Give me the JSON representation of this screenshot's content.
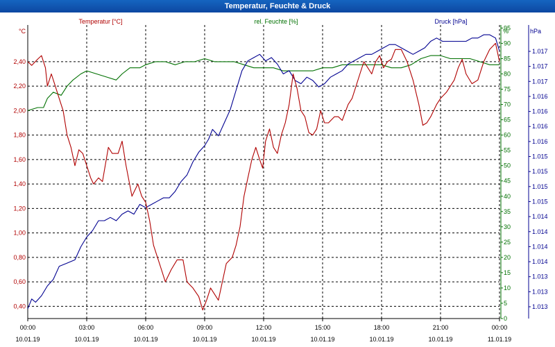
{
  "window_title": "Temperatur, Feuchte & Druck",
  "chart_data": {
    "type": "line",
    "title": "Temperatur, Feuchte & Druck",
    "colors": {
      "temperature": "#b00000",
      "humidity": "#007000",
      "pressure": "#000090",
      "grid": "#000000"
    },
    "axes": {
      "temperature": {
        "label": "Temperatur [°C]",
        "unit_label": "°C",
        "ylim": [
          0.3,
          2.7
        ],
        "ticks": [
          "0,40",
          "0,60",
          "0,80",
          "1,00",
          "1,20",
          "1,40",
          "1,60",
          "1,80",
          "2,00",
          "2,20",
          "2,40"
        ]
      },
      "humidity": {
        "label": "rel. Feuchte [%]",
        "unit_label": "%",
        "ylim": [
          0,
          96
        ],
        "ticks": [
          "0",
          "5",
          "10",
          "15",
          "20",
          "25",
          "30",
          "35",
          "40",
          "45",
          "50",
          "55",
          "60",
          "65",
          "70",
          "75",
          "80",
          "85",
          "90",
          "95"
        ]
      },
      "pressure": {
        "label": "Druck [hPa]",
        "unit_label": "hPa",
        "ylim": [
          1012.8,
          1017.3
        ],
        "ticks": [
          "1.013",
          "1.013",
          "1.013",
          "1.014",
          "1.014",
          "1.014",
          "1.014",
          "1.015",
          "1.015",
          "1.015",
          "1.015",
          "1.016",
          "1.016",
          "1.016",
          "1.016",
          "1.017",
          "1.017",
          "1.017"
        ]
      }
    },
    "x_ticks": [
      {
        "time": "00:00",
        "date": "10.01.19"
      },
      {
        "time": "03:00",
        "date": "10.01.19"
      },
      {
        "time": "06:00",
        "date": "10.01.19"
      },
      {
        "time": "09:00",
        "date": "10.01.19"
      },
      {
        "time": "12:00",
        "date": "10.01.19"
      },
      {
        "time": "15:00",
        "date": "10.01.19"
      },
      {
        "time": "18:00",
        "date": "10.01.19"
      },
      {
        "time": "21:00",
        "date": "10.01.19"
      },
      {
        "time": "00:00",
        "date": "11.01.19"
      }
    ],
    "xlim_hours": [
      0,
      24
    ],
    "series": [
      {
        "name": "Temperatur [°C]",
        "axis": "temperature",
        "color": "#b00000",
        "points": [
          [
            0,
            2.4
          ],
          [
            0.2,
            2.37
          ],
          [
            0.5,
            2.42
          ],
          [
            0.7,
            2.45
          ],
          [
            0.9,
            2.35
          ],
          [
            1.0,
            2.2
          ],
          [
            1.2,
            2.3
          ],
          [
            1.4,
            2.2
          ],
          [
            1.6,
            2.1
          ],
          [
            1.8,
            2.0
          ],
          [
            2.0,
            1.8
          ],
          [
            2.2,
            1.7
          ],
          [
            2.4,
            1.55
          ],
          [
            2.6,
            1.68
          ],
          [
            2.8,
            1.65
          ],
          [
            3.0,
            1.55
          ],
          [
            3.2,
            1.45
          ],
          [
            3.35,
            1.4
          ],
          [
            3.6,
            1.45
          ],
          [
            3.8,
            1.42
          ],
          [
            4.1,
            1.7
          ],
          [
            4.3,
            1.65
          ],
          [
            4.6,
            1.65
          ],
          [
            4.8,
            1.75
          ],
          [
            5.0,
            1.55
          ],
          [
            5.3,
            1.3
          ],
          [
            5.6,
            1.4
          ],
          [
            5.8,
            1.3
          ],
          [
            6.0,
            1.25
          ],
          [
            6.2,
            1.1
          ],
          [
            6.4,
            0.9
          ],
          [
            6.6,
            0.8
          ],
          [
            6.8,
            0.7
          ],
          [
            7.0,
            0.6
          ],
          [
            7.3,
            0.7
          ],
          [
            7.6,
            0.78
          ],
          [
            7.9,
            0.78
          ],
          [
            8.1,
            0.6
          ],
          [
            8.4,
            0.55
          ],
          [
            8.7,
            0.48
          ],
          [
            8.9,
            0.37
          ],
          [
            9.1,
            0.45
          ],
          [
            9.3,
            0.55
          ],
          [
            9.5,
            0.5
          ],
          [
            9.7,
            0.45
          ],
          [
            9.9,
            0.6
          ],
          [
            10.1,
            0.75
          ],
          [
            10.4,
            0.8
          ],
          [
            10.6,
            0.9
          ],
          [
            10.8,
            1.05
          ],
          [
            11.0,
            1.3
          ],
          [
            11.2,
            1.45
          ],
          [
            11.4,
            1.6
          ],
          [
            11.6,
            1.7
          ],
          [
            11.8,
            1.6
          ],
          [
            11.95,
            1.53
          ],
          [
            12.1,
            1.75
          ],
          [
            12.3,
            1.85
          ],
          [
            12.5,
            1.7
          ],
          [
            12.7,
            1.65
          ],
          [
            12.9,
            1.8
          ],
          [
            13.1,
            1.9
          ],
          [
            13.3,
            2.05
          ],
          [
            13.5,
            2.3
          ],
          [
            13.7,
            2.18
          ],
          [
            13.9,
            2.0
          ],
          [
            14.1,
            1.95
          ],
          [
            14.3,
            1.82
          ],
          [
            14.5,
            1.8
          ],
          [
            14.7,
            1.85
          ],
          [
            14.9,
            2.0
          ],
          [
            15.1,
            1.9
          ],
          [
            15.3,
            1.9
          ],
          [
            15.6,
            1.95
          ],
          [
            15.8,
            1.95
          ],
          [
            16.0,
            1.92
          ],
          [
            16.3,
            2.05
          ],
          [
            16.5,
            2.1
          ],
          [
            16.7,
            2.2
          ],
          [
            16.9,
            2.3
          ],
          [
            17.1,
            2.4
          ],
          [
            17.3,
            2.35
          ],
          [
            17.5,
            2.3
          ],
          [
            17.7,
            2.4
          ],
          [
            17.9,
            2.45
          ],
          [
            18.1,
            2.35
          ],
          [
            18.3,
            2.4
          ],
          [
            18.5,
            2.42
          ],
          [
            18.7,
            2.5
          ],
          [
            19.0,
            2.5
          ],
          [
            19.3,
            2.4
          ],
          [
            19.6,
            2.25
          ],
          [
            19.9,
            2.05
          ],
          [
            20.1,
            1.88
          ],
          [
            20.3,
            1.9
          ],
          [
            20.5,
            1.95
          ],
          [
            20.8,
            2.05
          ],
          [
            21.0,
            2.1
          ],
          [
            21.3,
            2.15
          ],
          [
            21.5,
            2.2
          ],
          [
            21.7,
            2.25
          ],
          [
            21.9,
            2.35
          ],
          [
            22.1,
            2.42
          ],
          [
            22.3,
            2.3
          ],
          [
            22.6,
            2.22
          ],
          [
            22.9,
            2.25
          ],
          [
            23.2,
            2.4
          ],
          [
            23.5,
            2.5
          ],
          [
            23.8,
            2.55
          ],
          [
            24.0,
            2.4
          ]
        ]
      },
      {
        "name": "rel. Feuchte [%]",
        "axis": "humidity",
        "color": "#007000",
        "points": [
          [
            0,
            68
          ],
          [
            0.5,
            69
          ],
          [
            0.8,
            69
          ],
          [
            1.0,
            72
          ],
          [
            1.3,
            74
          ],
          [
            1.7,
            73
          ],
          [
            2.0,
            76
          ],
          [
            2.3,
            78
          ],
          [
            2.7,
            80
          ],
          [
            3.0,
            81
          ],
          [
            3.5,
            80
          ],
          [
            4.0,
            79
          ],
          [
            4.5,
            78
          ],
          [
            4.8,
            80
          ],
          [
            5.2,
            82
          ],
          [
            5.7,
            82
          ],
          [
            6.0,
            83
          ],
          [
            6.5,
            84
          ],
          [
            7.0,
            84
          ],
          [
            7.5,
            83
          ],
          [
            8.0,
            84
          ],
          [
            8.5,
            84
          ],
          [
            9.0,
            85
          ],
          [
            9.5,
            84
          ],
          [
            10.0,
            84
          ],
          [
            10.5,
            84
          ],
          [
            11.0,
            83
          ],
          [
            11.5,
            82
          ],
          [
            12.0,
            82
          ],
          [
            12.5,
            82
          ],
          [
            13.0,
            81
          ],
          [
            13.5,
            81
          ],
          [
            14.0,
            81
          ],
          [
            14.5,
            81
          ],
          [
            15.0,
            82
          ],
          [
            15.5,
            82
          ],
          [
            16.0,
            83
          ],
          [
            16.5,
            83
          ],
          [
            17.0,
            83
          ],
          [
            17.5,
            83
          ],
          [
            18.0,
            83
          ],
          [
            18.5,
            82
          ],
          [
            19.0,
            82
          ],
          [
            19.5,
            83
          ],
          [
            20.0,
            85
          ],
          [
            20.5,
            86
          ],
          [
            21.0,
            86
          ],
          [
            21.5,
            85
          ],
          [
            22.0,
            85
          ],
          [
            22.5,
            85
          ],
          [
            23.0,
            84
          ],
          [
            23.5,
            83
          ],
          [
            24.0,
            83
          ]
        ]
      },
      {
        "name": "Druck [hPa]",
        "axis": "pressure",
        "color": "#000090",
        "points": [
          [
            0,
            1012.95
          ],
          [
            0.2,
            1013.1
          ],
          [
            0.4,
            1013.05
          ],
          [
            0.7,
            1013.15
          ],
          [
            1.0,
            1013.3
          ],
          [
            1.3,
            1013.4
          ],
          [
            1.6,
            1013.6
          ],
          [
            2.0,
            1013.65
          ],
          [
            2.4,
            1013.7
          ],
          [
            2.7,
            1013.9
          ],
          [
            3.0,
            1014.05
          ],
          [
            3.3,
            1014.15
          ],
          [
            3.6,
            1014.3
          ],
          [
            3.9,
            1014.3
          ],
          [
            4.2,
            1014.35
          ],
          [
            4.5,
            1014.3
          ],
          [
            4.8,
            1014.4
          ],
          [
            5.1,
            1014.45
          ],
          [
            5.4,
            1014.4
          ],
          [
            5.7,
            1014.55
          ],
          [
            6.0,
            1014.5
          ],
          [
            6.3,
            1014.55
          ],
          [
            6.6,
            1014.6
          ],
          [
            6.9,
            1014.65
          ],
          [
            7.2,
            1014.65
          ],
          [
            7.5,
            1014.75
          ],
          [
            7.8,
            1014.9
          ],
          [
            8.1,
            1015.0
          ],
          [
            8.4,
            1015.2
          ],
          [
            8.7,
            1015.35
          ],
          [
            9.0,
            1015.45
          ],
          [
            9.2,
            1015.55
          ],
          [
            9.4,
            1015.7
          ],
          [
            9.7,
            1015.6
          ],
          [
            10.0,
            1015.8
          ],
          [
            10.3,
            1016.0
          ],
          [
            10.6,
            1016.3
          ],
          [
            10.9,
            1016.6
          ],
          [
            11.2,
            1016.75
          ],
          [
            11.5,
            1016.8
          ],
          [
            11.8,
            1016.85
          ],
          [
            12.1,
            1016.75
          ],
          [
            12.4,
            1016.8
          ],
          [
            12.7,
            1016.7
          ],
          [
            13.0,
            1016.55
          ],
          [
            13.3,
            1016.6
          ],
          [
            13.6,
            1016.45
          ],
          [
            13.9,
            1016.4
          ],
          [
            14.2,
            1016.5
          ],
          [
            14.5,
            1016.45
          ],
          [
            14.8,
            1016.35
          ],
          [
            15.1,
            1016.4
          ],
          [
            15.4,
            1016.5
          ],
          [
            15.7,
            1016.55
          ],
          [
            16.0,
            1016.6
          ],
          [
            16.3,
            1016.7
          ],
          [
            16.6,
            1016.75
          ],
          [
            16.9,
            1016.8
          ],
          [
            17.2,
            1016.85
          ],
          [
            17.5,
            1016.85
          ],
          [
            17.8,
            1016.9
          ],
          [
            18.1,
            1016.95
          ],
          [
            18.4,
            1017.0
          ],
          [
            18.7,
            1017.0
          ],
          [
            19.0,
            1016.95
          ],
          [
            19.3,
            1016.9
          ],
          [
            19.6,
            1016.85
          ],
          [
            19.9,
            1016.9
          ],
          [
            20.2,
            1016.95
          ],
          [
            20.5,
            1017.05
          ],
          [
            20.8,
            1017.1
          ],
          [
            21.1,
            1017.05
          ],
          [
            21.4,
            1017.05
          ],
          [
            21.7,
            1017.05
          ],
          [
            22.0,
            1017.05
          ],
          [
            22.3,
            1017.05
          ],
          [
            22.6,
            1017.1
          ],
          [
            22.9,
            1017.1
          ],
          [
            23.2,
            1017.15
          ],
          [
            23.5,
            1017.15
          ],
          [
            23.8,
            1017.1
          ],
          [
            24.0,
            1016.9
          ]
        ]
      }
    ]
  }
}
